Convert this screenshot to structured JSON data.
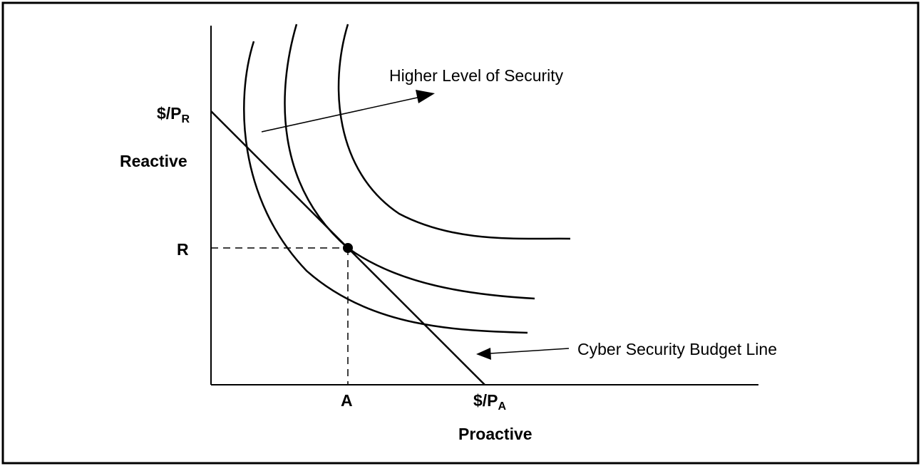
{
  "diagram": {
    "y_axis_intercept_label": {
      "main": "$/P",
      "sub": "R"
    },
    "y_axis_label": "Reactive",
    "y_point_label": "R",
    "x_point_label": "A",
    "x_axis_intercept_label": {
      "main": "$/P",
      "sub": "A"
    },
    "x_axis_label": "Proactive",
    "annotation_security": "Higher Level of Security",
    "annotation_budget": "Cyber Security Budget Line"
  },
  "colors": {
    "ink": "#000000",
    "background": "#ffffff"
  }
}
